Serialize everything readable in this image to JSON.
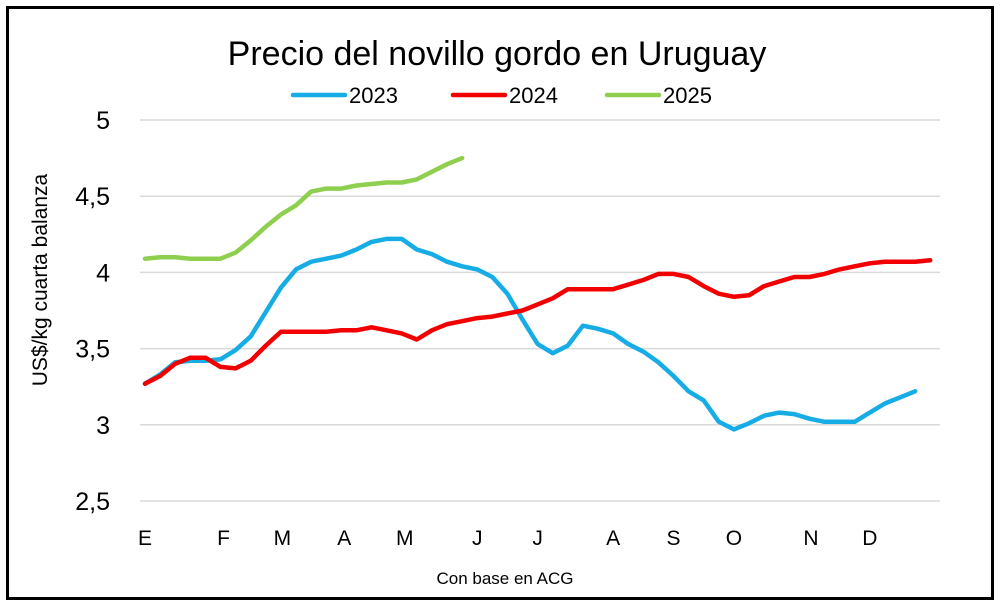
{
  "chart_data": {
    "type": "line",
    "title": "Precio del novillo gordo en Uruguay",
    "ylabel": "US$/kg cuarta balanza",
    "xlabel": "Con base en ACG",
    "ylim": [
      2.5,
      5
    ],
    "yticks": [
      "2,5",
      "3",
      "3,5",
      "4",
      "4,5",
      "5"
    ],
    "ytick_values": [
      2.5,
      3,
      3.5,
      4,
      4.5,
      5
    ],
    "xtick_labels": [
      "E",
      "F",
      "M",
      "A",
      "M",
      "J",
      "J",
      "A",
      "S",
      "O",
      "N",
      "D"
    ],
    "x_unit": "week",
    "grid": true,
    "legend_position": "top",
    "series": [
      {
        "name": "2023",
        "color": "#16ACE6",
        "values": [
          3.27,
          3.33,
          3.41,
          3.42,
          3.42,
          3.43,
          3.49,
          3.58,
          3.74,
          3.9,
          4.02,
          4.07,
          4.09,
          4.11,
          4.15,
          4.2,
          4.22,
          4.22,
          4.15,
          4.12,
          4.07,
          4.04,
          4.02,
          3.97,
          3.86,
          3.69,
          3.53,
          3.47,
          3.52,
          3.65,
          3.63,
          3.6,
          3.53,
          3.48,
          3.41,
          3.32,
          3.22,
          3.16,
          3.02,
          2.97,
          3.01,
          3.06,
          3.08,
          3.07,
          3.04,
          3.02,
          3.02,
          3.02,
          3.08,
          3.14,
          3.18,
          3.22
        ]
      },
      {
        "name": "2024",
        "color": "#F20000",
        "values": [
          3.27,
          3.32,
          3.4,
          3.44,
          3.44,
          3.38,
          3.37,
          3.42,
          3.52,
          3.61,
          3.61,
          3.61,
          3.61,
          3.62,
          3.62,
          3.64,
          3.62,
          3.6,
          3.56,
          3.62,
          3.66,
          3.68,
          3.7,
          3.71,
          3.73,
          3.75,
          3.79,
          3.83,
          3.89,
          3.89,
          3.89,
          3.89,
          3.92,
          3.95,
          3.99,
          3.99,
          3.97,
          3.91,
          3.86,
          3.84,
          3.85,
          3.91,
          3.94,
          3.97,
          3.97,
          3.99,
          4.02,
          4.04,
          4.06,
          4.07,
          4.07,
          4.07,
          4.08
        ]
      },
      {
        "name": "2025",
        "color": "#8FCF50",
        "values": [
          4.09,
          4.1,
          4.1,
          4.09,
          4.09,
          4.09,
          4.13,
          4.21,
          4.3,
          4.38,
          4.44,
          4.53,
          4.55,
          4.55,
          4.57,
          4.58,
          4.59,
          4.59,
          4.61,
          4.66,
          4.71,
          4.75
        ]
      }
    ]
  }
}
